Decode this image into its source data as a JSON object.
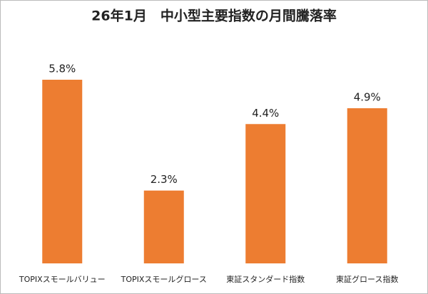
{
  "chart_data": {
    "type": "bar",
    "title": "26年1月　中小型主要指数の月間騰落率",
    "categories": [
      "TOPIXスモールバリュー",
      "TOPIXスモールグロース",
      "東証スタンダード指数",
      "東証グロース指数"
    ],
    "values": [
      5.8,
      2.3,
      4.4,
      4.9
    ],
    "value_labels": [
      "5.8%",
      "2.3%",
      "4.4%",
      "4.9%"
    ],
    "color": "#ed7d31"
  }
}
